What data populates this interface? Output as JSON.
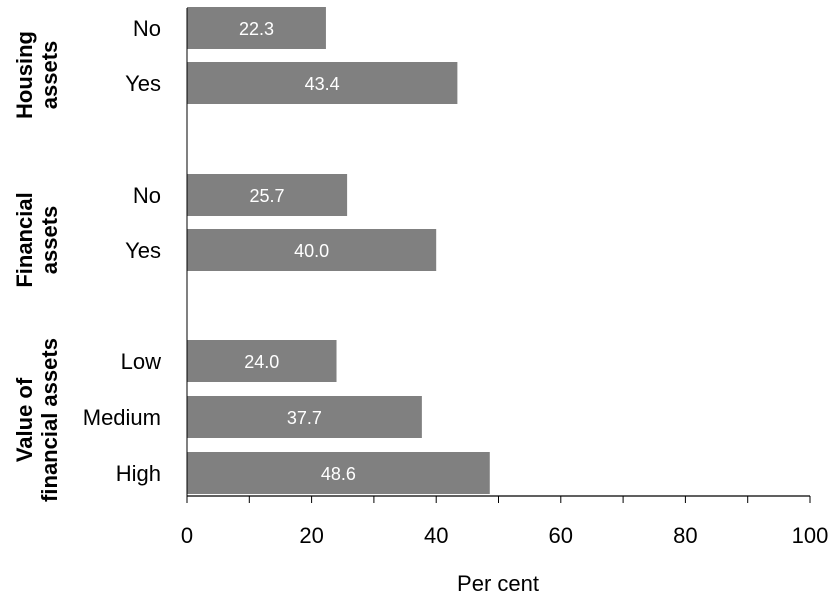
{
  "chart_data": {
    "type": "bar",
    "orientation": "horizontal",
    "xlabel": "Per cent",
    "xlim": [
      0,
      100
    ],
    "xticks": [
      0,
      20,
      40,
      60,
      80,
      100
    ],
    "bar_color": "#808080",
    "value_label_color": "#ffffff",
    "groups": [
      {
        "label_lines": [
          "Housing",
          "assets"
        ],
        "categories": [
          "No",
          "Yes"
        ],
        "values": [
          22.3,
          43.4
        ]
      },
      {
        "label_lines": [
          "Financial",
          "assets"
        ],
        "categories": [
          "No",
          "Yes"
        ],
        "values": [
          25.7,
          40.0
        ]
      },
      {
        "label_lines": [
          "Value of",
          "financial assets"
        ],
        "categories": [
          "Low",
          "Medium",
          "High"
        ],
        "values": [
          24.0,
          37.7,
          48.6
        ]
      }
    ]
  }
}
